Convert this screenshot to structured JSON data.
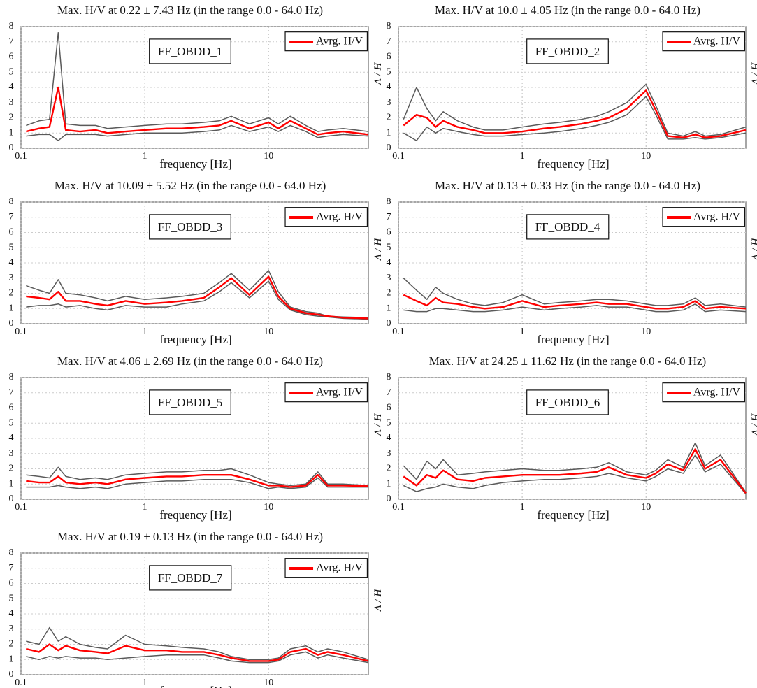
{
  "chart_data": [
    {
      "type": "line",
      "title": "Max. H/V at 0.22 ± 7.43 Hz (in the range 0.0 - 64.0 Hz)",
      "annotation": "FF_OBDD_1",
      "xlabel": "frequency [Hz]",
      "ylabel": "H / V",
      "log_x": true,
      "grid": true,
      "xlim": [
        0.1,
        64
      ],
      "xticks": [
        0.1,
        1,
        10
      ],
      "ylim": [
        0,
        8
      ],
      "yticks": [
        0,
        1,
        2,
        3,
        4,
        5,
        6,
        7,
        8
      ],
      "x": [
        0.11,
        0.14,
        0.17,
        0.2,
        0.23,
        0.3,
        0.4,
        0.5,
        0.7,
        1,
        1.5,
        2,
        3,
        4,
        5,
        7,
        10,
        12,
        15,
        20,
        25,
        30,
        40,
        64
      ],
      "series": [
        {
          "name": "Avrg. H/V",
          "color": "#ff0000",
          "values": [
            1.1,
            1.3,
            1.4,
            4.0,
            1.2,
            1.1,
            1.2,
            1.0,
            1.1,
            1.2,
            1.3,
            1.3,
            1.4,
            1.5,
            1.8,
            1.3,
            1.7,
            1.3,
            1.8,
            1.3,
            0.9,
            1.0,
            1.1,
            0.9
          ]
        },
        {
          "color": "#5a5a5a",
          "values": [
            1.5,
            1.8,
            1.9,
            7.6,
            1.6,
            1.5,
            1.5,
            1.3,
            1.4,
            1.5,
            1.6,
            1.6,
            1.7,
            1.8,
            2.1,
            1.6,
            2.0,
            1.6,
            2.1,
            1.5,
            1.1,
            1.2,
            1.3,
            1.1
          ]
        },
        {
          "color": "#5a5a5a",
          "values": [
            0.8,
            0.9,
            0.9,
            0.5,
            0.9,
            0.9,
            0.9,
            0.8,
            0.9,
            1.0,
            1.0,
            1.0,
            1.1,
            1.2,
            1.5,
            1.1,
            1.4,
            1.1,
            1.5,
            1.1,
            0.7,
            0.8,
            0.9,
            0.8
          ]
        }
      ]
    },
    {
      "type": "line",
      "title": "Max. H/V at 10.0 ± 4.05 Hz (in the range 0.0 - 64.0 Hz)",
      "annotation": "FF_OBDD_2",
      "xlabel": "frequency [Hz]",
      "ylabel": "H / V",
      "log_x": true,
      "grid": true,
      "xlim": [
        0.1,
        64
      ],
      "xticks": [
        0.1,
        1,
        10
      ],
      "ylim": [
        0,
        8
      ],
      "yticks": [
        0,
        1,
        2,
        3,
        4,
        5,
        6,
        7,
        8
      ],
      "x": [
        0.11,
        0.14,
        0.17,
        0.2,
        0.23,
        0.3,
        0.4,
        0.5,
        0.7,
        1,
        1.5,
        2,
        3,
        4,
        5,
        7,
        10,
        12,
        15,
        20,
        25,
        30,
        40,
        64
      ],
      "series": [
        {
          "name": "Avrg. H/V",
          "color": "#ff0000",
          "values": [
            1.5,
            2.2,
            2.0,
            1.4,
            1.8,
            1.4,
            1.2,
            1.0,
            1.0,
            1.1,
            1.3,
            1.4,
            1.6,
            1.8,
            2.0,
            2.6,
            3.8,
            2.5,
            0.8,
            0.7,
            0.9,
            0.7,
            0.8,
            1.2
          ]
        },
        {
          "color": "#5a5a5a",
          "values": [
            1.9,
            4.0,
            2.6,
            1.8,
            2.4,
            1.8,
            1.4,
            1.2,
            1.2,
            1.4,
            1.6,
            1.7,
            1.9,
            2.1,
            2.4,
            3.0,
            4.2,
            2.8,
            1.0,
            0.8,
            1.1,
            0.8,
            0.9,
            1.4
          ]
        },
        {
          "color": "#5a5a5a",
          "values": [
            1.0,
            0.5,
            1.4,
            1.0,
            1.3,
            1.1,
            0.9,
            0.8,
            0.8,
            0.9,
            1.0,
            1.1,
            1.3,
            1.5,
            1.7,
            2.2,
            3.4,
            2.2,
            0.6,
            0.6,
            0.7,
            0.6,
            0.7,
            1.0
          ]
        }
      ]
    },
    {
      "type": "line",
      "title": "Max. H/V at 10.09 ± 5.52 Hz (in the range 0.0 - 64.0 Hz)",
      "annotation": "FF_OBDD_3",
      "xlabel": "frequency [Hz]",
      "ylabel": "H / V",
      "log_x": true,
      "grid": true,
      "xlim": [
        0.1,
        64
      ],
      "xticks": [
        0.1,
        1,
        10
      ],
      "ylim": [
        0,
        8
      ],
      "yticks": [
        0,
        1,
        2,
        3,
        4,
        5,
        6,
        7,
        8
      ],
      "x": [
        0.11,
        0.14,
        0.17,
        0.2,
        0.23,
        0.3,
        0.4,
        0.5,
        0.7,
        1,
        1.5,
        2,
        3,
        4,
        5,
        7,
        10,
        12,
        15,
        20,
        25,
        30,
        40,
        64
      ],
      "series": [
        {
          "name": "Avrg. H/V",
          "color": "#ff0000",
          "values": [
            1.8,
            1.7,
            1.6,
            2.1,
            1.5,
            1.5,
            1.3,
            1.2,
            1.5,
            1.3,
            1.4,
            1.5,
            1.7,
            2.4,
            3.0,
            1.9,
            3.1,
            1.8,
            1.0,
            0.7,
            0.6,
            0.5,
            0.4,
            0.35
          ]
        },
        {
          "color": "#5a5a5a",
          "values": [
            2.5,
            2.2,
            2.0,
            2.9,
            2.0,
            1.9,
            1.7,
            1.5,
            1.8,
            1.6,
            1.7,
            1.8,
            2.0,
            2.7,
            3.3,
            2.2,
            3.5,
            2.1,
            1.1,
            0.8,
            0.7,
            0.5,
            0.45,
            0.4
          ]
        },
        {
          "color": "#5a5a5a",
          "values": [
            1.1,
            1.2,
            1.2,
            1.3,
            1.1,
            1.2,
            1.0,
            0.9,
            1.2,
            1.1,
            1.1,
            1.3,
            1.5,
            2.1,
            2.7,
            1.7,
            2.8,
            1.6,
            0.9,
            0.6,
            0.5,
            0.45,
            0.35,
            0.3
          ]
        }
      ]
    },
    {
      "type": "line",
      "title": "Max. H/V at 0.13 ± 0.33 Hz (in the range 0.0 - 64.0 Hz)",
      "annotation": "FF_OBDD_4",
      "xlabel": "frequency [Hz]",
      "ylabel": "H / V",
      "log_x": true,
      "grid": true,
      "xlim": [
        0.1,
        64
      ],
      "xticks": [
        0.1,
        1,
        10
      ],
      "ylim": [
        0,
        8
      ],
      "yticks": [
        0,
        1,
        2,
        3,
        4,
        5,
        6,
        7,
        8
      ],
      "x": [
        0.11,
        0.14,
        0.17,
        0.2,
        0.23,
        0.3,
        0.4,
        0.5,
        0.7,
        1,
        1.5,
        2,
        3,
        4,
        5,
        7,
        10,
        12,
        15,
        20,
        25,
        30,
        40,
        64
      ],
      "series": [
        {
          "name": "Avrg. H/V",
          "color": "#ff0000",
          "values": [
            1.9,
            1.5,
            1.2,
            1.7,
            1.4,
            1.3,
            1.1,
            1.0,
            1.1,
            1.5,
            1.1,
            1.2,
            1.3,
            1.4,
            1.3,
            1.3,
            1.1,
            1.0,
            1.0,
            1.1,
            1.5,
            1.0,
            1.1,
            1.0
          ]
        },
        {
          "color": "#5a5a5a",
          "values": [
            3.0,
            2.2,
            1.6,
            2.4,
            2.0,
            1.6,
            1.3,
            1.2,
            1.4,
            1.9,
            1.3,
            1.4,
            1.5,
            1.6,
            1.6,
            1.5,
            1.3,
            1.2,
            1.2,
            1.3,
            1.7,
            1.2,
            1.3,
            1.1
          ]
        },
        {
          "color": "#5a5a5a",
          "values": [
            0.9,
            0.8,
            0.8,
            1.0,
            1.0,
            0.9,
            0.8,
            0.8,
            0.9,
            1.1,
            0.9,
            1.0,
            1.1,
            1.2,
            1.1,
            1.1,
            0.9,
            0.8,
            0.8,
            0.9,
            1.3,
            0.8,
            0.9,
            0.8
          ]
        }
      ]
    },
    {
      "type": "line",
      "title": "Max. H/V at 4.06 ± 2.69 Hz (in the range 0.0 - 64.0 Hz)",
      "annotation": "FF_OBDD_5",
      "xlabel": "frequency [Hz]",
      "ylabel": "H / V",
      "log_x": true,
      "grid": true,
      "xlim": [
        0.1,
        64
      ],
      "xticks": [
        0.1,
        1,
        10
      ],
      "ylim": [
        0,
        8
      ],
      "yticks": [
        0,
        1,
        2,
        3,
        4,
        5,
        6,
        7,
        8
      ],
      "x": [
        0.11,
        0.14,
        0.17,
        0.2,
        0.23,
        0.3,
        0.4,
        0.5,
        0.7,
        1,
        1.5,
        2,
        3,
        4,
        5,
        7,
        10,
        12,
        15,
        20,
        25,
        30,
        40,
        64
      ],
      "series": [
        {
          "name": "Avrg. H/V",
          "color": "#ff0000",
          "values": [
            1.2,
            1.1,
            1.1,
            1.5,
            1.1,
            1.0,
            1.1,
            1.0,
            1.3,
            1.4,
            1.5,
            1.5,
            1.6,
            1.6,
            1.6,
            1.3,
            0.9,
            0.9,
            0.8,
            0.9,
            1.6,
            0.9,
            0.9,
            0.85
          ]
        },
        {
          "color": "#5a5a5a",
          "values": [
            1.6,
            1.5,
            1.4,
            2.1,
            1.5,
            1.3,
            1.4,
            1.3,
            1.6,
            1.7,
            1.8,
            1.8,
            1.9,
            1.9,
            2.0,
            1.6,
            1.1,
            1.0,
            0.9,
            1.0,
            1.8,
            1.0,
            1.0,
            0.9
          ]
        },
        {
          "color": "#5a5a5a",
          "values": [
            0.8,
            0.8,
            0.8,
            0.9,
            0.8,
            0.7,
            0.8,
            0.7,
            1.0,
            1.1,
            1.2,
            1.2,
            1.3,
            1.3,
            1.3,
            1.1,
            0.7,
            0.8,
            0.7,
            0.8,
            1.4,
            0.8,
            0.8,
            0.8
          ]
        }
      ]
    },
    {
      "type": "line",
      "title": "Max. H/V at 24.25 ± 11.62 Hz (in the range 0.0 - 64.0 Hz)",
      "annotation": "FF_OBDD_6",
      "xlabel": "frequency [Hz]",
      "ylabel": "H / V",
      "log_x": true,
      "grid": true,
      "xlim": [
        0.1,
        64
      ],
      "xticks": [
        0.1,
        1,
        10
      ],
      "ylim": [
        0,
        8
      ],
      "yticks": [
        0,
        1,
        2,
        3,
        4,
        5,
        6,
        7,
        8
      ],
      "x": [
        0.11,
        0.14,
        0.17,
        0.2,
        0.23,
        0.3,
        0.4,
        0.5,
        0.7,
        1,
        1.5,
        2,
        3,
        4,
        5,
        7,
        10,
        12,
        15,
        20,
        25,
        30,
        40,
        64
      ],
      "series": [
        {
          "name": "Avrg. H/V",
          "color": "#ff0000",
          "values": [
            1.5,
            0.9,
            1.6,
            1.4,
            1.9,
            1.3,
            1.2,
            1.4,
            1.5,
            1.6,
            1.6,
            1.6,
            1.7,
            1.8,
            2.1,
            1.6,
            1.4,
            1.7,
            2.3,
            1.9,
            3.3,
            2.0,
            2.6,
            0.4
          ]
        },
        {
          "color": "#5a5a5a",
          "values": [
            2.2,
            1.3,
            2.5,
            2.0,
            2.6,
            1.6,
            1.7,
            1.8,
            1.9,
            2.0,
            1.9,
            1.9,
            2.0,
            2.1,
            2.4,
            1.8,
            1.6,
            1.9,
            2.6,
            2.1,
            3.7,
            2.2,
            2.9,
            0.45
          ]
        },
        {
          "color": "#5a5a5a",
          "values": [
            0.9,
            0.5,
            0.7,
            0.8,
            1.0,
            0.8,
            0.7,
            0.9,
            1.1,
            1.2,
            1.3,
            1.3,
            1.4,
            1.5,
            1.7,
            1.4,
            1.2,
            1.5,
            2.0,
            1.7,
            2.9,
            1.8,
            2.3,
            0.35
          ]
        }
      ]
    },
    {
      "type": "line",
      "title": "Max. H/V at 0.19 ± 0.13 Hz (in the range 0.0 - 64.0 Hz)",
      "annotation": "FF_OBDD_7",
      "xlabel": "frequency [Hz]",
      "ylabel": "H / V",
      "log_x": true,
      "grid": true,
      "xlim": [
        0.1,
        64
      ],
      "xticks": [
        0.1,
        1,
        10
      ],
      "ylim": [
        0,
        8
      ],
      "yticks": [
        0,
        1,
        2,
        3,
        4,
        5,
        6,
        7,
        8
      ],
      "x": [
        0.11,
        0.14,
        0.17,
        0.2,
        0.23,
        0.3,
        0.4,
        0.5,
        0.7,
        1,
        1.5,
        2,
        3,
        4,
        5,
        7,
        10,
        12,
        15,
        20,
        25,
        30,
        40,
        64
      ],
      "series": [
        {
          "name": "Avrg. H/V",
          "color": "#ff0000",
          "values": [
            1.7,
            1.5,
            2.0,
            1.6,
            1.9,
            1.6,
            1.5,
            1.4,
            1.9,
            1.6,
            1.6,
            1.5,
            1.5,
            1.3,
            1.1,
            0.9,
            0.9,
            1.0,
            1.5,
            1.7,
            1.3,
            1.5,
            1.3,
            0.9
          ]
        },
        {
          "color": "#5a5a5a",
          "values": [
            2.2,
            2.0,
            3.1,
            2.2,
            2.5,
            2.0,
            1.8,
            1.7,
            2.6,
            2.0,
            1.9,
            1.8,
            1.7,
            1.5,
            1.2,
            1.0,
            1.0,
            1.1,
            1.7,
            1.9,
            1.5,
            1.7,
            1.5,
            1.0
          ]
        },
        {
          "color": "#5a5a5a",
          "values": [
            1.2,
            1.0,
            1.2,
            1.1,
            1.2,
            1.1,
            1.1,
            1.0,
            1.1,
            1.2,
            1.3,
            1.3,
            1.3,
            1.1,
            0.9,
            0.8,
            0.8,
            0.9,
            1.3,
            1.5,
            1.1,
            1.3,
            1.1,
            0.8
          ]
        }
      ]
    }
  ]
}
